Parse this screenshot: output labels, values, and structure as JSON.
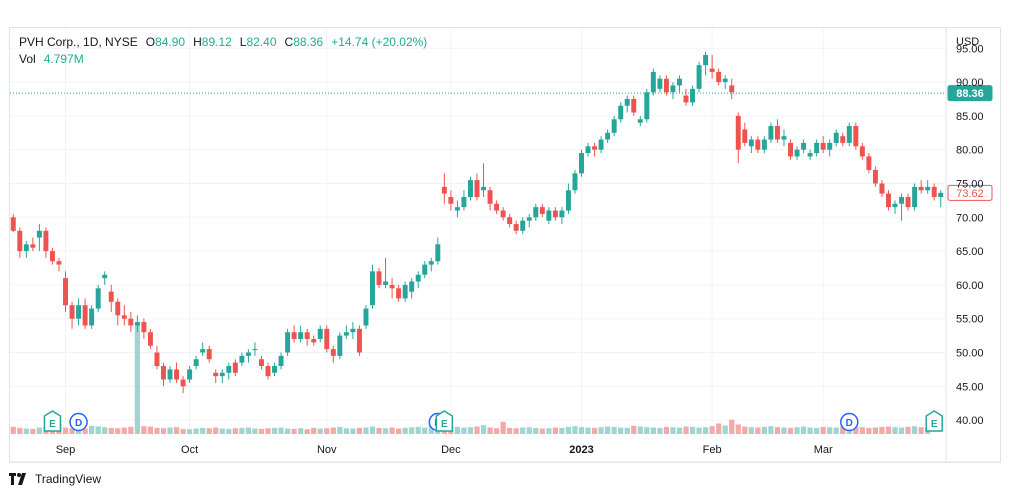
{
  "legend": {
    "symbol_line": "PVH Corp., 1D, NYSE",
    "open_label": "O",
    "open_value": "84.90",
    "high_label": "H",
    "high_value": "89.12",
    "low_label": "L",
    "low_value": "82.40",
    "close_label": "C",
    "close_value": "88.36",
    "change": "+14.74 (+20.02%)",
    "volume_label": "Vol",
    "volume_value": "4.797M"
  },
  "footer": {
    "brand": "TradingView"
  },
  "colors": {
    "up": "#26a69a",
    "down": "#ef5350",
    "up_vol": "#9ed6cf",
    "down_vol": "#f4a8a7",
    "grid": "#f0f3fa",
    "axis_text": "#131722"
  },
  "chart_data": {
    "type": "candlestick",
    "currency": "USD",
    "ylim": [
      37.5,
      98
    ],
    "y_ticks": [
      "95.00",
      "90.00",
      "85.00",
      "80.00",
      "75.00",
      "70.00",
      "65.00",
      "60.00",
      "55.00",
      "50.00",
      "45.00",
      "40.00"
    ],
    "x_labels": [
      {
        "label": "Sep",
        "index": 8
      },
      {
        "label": "Oct",
        "index": 27
      },
      {
        "label": "Nov",
        "index": 48
      },
      {
        "label": "Dec",
        "index": 67
      },
      {
        "label": "2023",
        "index": 87
      },
      {
        "label": "Feb",
        "index": 107
      },
      {
        "label": "Mar",
        "index": 124
      }
    ],
    "price_lines": [
      {
        "value": 88.36,
        "label": "88.36",
        "style": "filled",
        "color": "#26a69a",
        "dotted_line": true
      },
      {
        "value": 73.62,
        "label": "73.62",
        "style": "outline",
        "color": "#ef5350",
        "dotted_line": false
      }
    ],
    "events": [
      {
        "type": "E",
        "index": 6
      },
      {
        "type": "D",
        "index": 10
      },
      {
        "type": "D",
        "index": 65
      },
      {
        "type": "E",
        "index": 66
      },
      {
        "type": "D",
        "index": 128
      },
      {
        "type": "E",
        "index": 141
      }
    ],
    "candles": [
      [
        70,
        70.5,
        67.8,
        68
      ],
      [
        68,
        68.5,
        64,
        65
      ],
      [
        65,
        66.5,
        64,
        66
      ],
      [
        66,
        67,
        65,
        65.5
      ],
      [
        67,
        69,
        65,
        68
      ],
      [
        68,
        68.5,
        64,
        65
      ],
      [
        65,
        65.5,
        63,
        63.5
      ],
      [
        63.5,
        64,
        62,
        63
      ],
      [
        61,
        62,
        56,
        57
      ],
      [
        57,
        57.5,
        53.5,
        55
      ],
      [
        55,
        58,
        54,
        57
      ],
      [
        57,
        58,
        53.5,
        54
      ],
      [
        54,
        57,
        53.5,
        56.5
      ],
      [
        56.5,
        60,
        56,
        59.5
      ],
      [
        61,
        62,
        60,
        61.5
      ],
      [
        59,
        60,
        56,
        57.5
      ],
      [
        57.5,
        58,
        54,
        55.5
      ],
      [
        55.5,
        57,
        54,
        55
      ],
      [
        55,
        56,
        53,
        54
      ],
      [
        54,
        55.5,
        53,
        54.5
      ],
      [
        54.5,
        55,
        52,
        53
      ],
      [
        53,
        53.5,
        50.5,
        51
      ],
      [
        50,
        51,
        47.5,
        48
      ],
      [
        48,
        48.5,
        45,
        46
      ],
      [
        46,
        48,
        45.5,
        47.5
      ],
      [
        47.5,
        48.5,
        45.5,
        46
      ],
      [
        46,
        46.5,
        44,
        45
      ],
      [
        46,
        48,
        45.5,
        47.5
      ],
      [
        48,
        49.5,
        47.5,
        49
      ],
      [
        50,
        51.5,
        49.5,
        50.5
      ],
      [
        50.5,
        51,
        48.5,
        49
      ],
      [
        47,
        47.5,
        45.5,
        46.5
      ],
      [
        46.5,
        47.5,
        45.5,
        47
      ],
      [
        47,
        48.5,
        46,
        48
      ],
      [
        48.5,
        49,
        46.5,
        47
      ],
      [
        48.5,
        50,
        48,
        49.5
      ],
      [
        49.5,
        50.5,
        48.5,
        50
      ],
      [
        50.5,
        51.5,
        49.5,
        50.5
      ],
      [
        49,
        49.5,
        47.5,
        48
      ],
      [
        48,
        48.5,
        46,
        46.5
      ],
      [
        47,
        48.5,
        46.5,
        48
      ],
      [
        48,
        50,
        47.5,
        49.5
      ],
      [
        50,
        53.5,
        49.5,
        53
      ],
      [
        53,
        54,
        51.5,
        52
      ],
      [
        52,
        54,
        51.5,
        53
      ],
      [
        53,
        53.5,
        51,
        52
      ],
      [
        52,
        52.5,
        51,
        51.5
      ],
      [
        52,
        54,
        51.5,
        53.5
      ],
      [
        53.5,
        54,
        50,
        50.5
      ],
      [
        50.5,
        51,
        48.5,
        49.5
      ],
      [
        49.5,
        53,
        49,
        52.5
      ],
      [
        52.5,
        54,
        52,
        53
      ],
      [
        53,
        54.5,
        52,
        53.5
      ],
      [
        53.5,
        54,
        49.5,
        50
      ],
      [
        54,
        57,
        53.5,
        56.5
      ],
      [
        57,
        63,
        56.5,
        62
      ],
      [
        62,
        62.5,
        59.5,
        60
      ],
      [
        60,
        64,
        59.5,
        60.5
      ],
      [
        60,
        61,
        58,
        59.5
      ],
      [
        59.5,
        60,
        57.5,
        58
      ],
      [
        58,
        60.5,
        57.5,
        60
      ],
      [
        59,
        61,
        58,
        60.5
      ],
      [
        60.5,
        62,
        59.5,
        61.5
      ],
      [
        61.5,
        63.5,
        61,
        63
      ],
      [
        63,
        64,
        62,
        63.5
      ],
      [
        63.5,
        67,
        63,
        66
      ],
      [
        74.5,
        76.5,
        72,
        73.5
      ],
      [
        73,
        74,
        71,
        72
      ],
      [
        71,
        72.5,
        70,
        71.5
      ],
      [
        71.5,
        74,
        71,
        73
      ],
      [
        73,
        76,
        72.5,
        75.5
      ],
      [
        75.5,
        76.5,
        72.5,
        73
      ],
      [
        74,
        78,
        73,
        74.5
      ],
      [
        74,
        74.5,
        71,
        72
      ],
      [
        72,
        72.5,
        70.5,
        71
      ],
      [
        71,
        71.5,
        69.5,
        70
      ],
      [
        70,
        70.5,
        68.5,
        69
      ],
      [
        69,
        69.5,
        67.5,
        68
      ],
      [
        68,
        70,
        67.5,
        69.5
      ],
      [
        69.5,
        70.5,
        68.5,
        70
      ],
      [
        70,
        72,
        69.5,
        71.5
      ],
      [
        71.5,
        72,
        70,
        70.5
      ],
      [
        69.5,
        71.5,
        69,
        71
      ],
      [
        71,
        71.5,
        69.5,
        70
      ],
      [
        70,
        71.5,
        69,
        71
      ],
      [
        71,
        75,
        70.5,
        74
      ],
      [
        74,
        77,
        73.5,
        76.5
      ],
      [
        76.5,
        80,
        76,
        79.5
      ],
      [
        79.5,
        81,
        79,
        80.5
      ],
      [
        80.5,
        81,
        79,
        80
      ],
      [
        80,
        82,
        79.5,
        81.5
      ],
      [
        81.5,
        83,
        81,
        82.5
      ],
      [
        82.5,
        85,
        82,
        84.5
      ],
      [
        84.5,
        87,
        84,
        86.5
      ],
      [
        86.5,
        88,
        85.5,
        87.5
      ],
      [
        87.5,
        88,
        85,
        85.5
      ],
      [
        84,
        85,
        83.5,
        84.5
      ],
      [
        84.5,
        89,
        84,
        88.5
      ],
      [
        88.5,
        92,
        88,
        91.5
      ],
      [
        89,
        91,
        88.5,
        90.5
      ],
      [
        90.5,
        91,
        88,
        88.5
      ],
      [
        88.5,
        90,
        87.5,
        89.5
      ],
      [
        89.5,
        91,
        88.5,
        90.5
      ],
      [
        88,
        89,
        86.5,
        87
      ],
      [
        87,
        89.5,
        86.5,
        89
      ],
      [
        89,
        93,
        88.5,
        92.5
      ],
      [
        92.5,
        94.5,
        91,
        94
      ],
      [
        92,
        94,
        90.5,
        91.5
      ],
      [
        91.5,
        92,
        89.5,
        90
      ],
      [
        90,
        91,
        89,
        90.5
      ],
      [
        89.5,
        90.5,
        87.5,
        88.5
      ],
      [
        85,
        85.5,
        78,
        80
      ],
      [
        83,
        84,
        80.5,
        81
      ],
      [
        80.5,
        82,
        79.5,
        81.5
      ],
      [
        81.5,
        82,
        79.5,
        80
      ],
      [
        80,
        82,
        79.5,
        81.5
      ],
      [
        81.5,
        84,
        81,
        83.5
      ],
      [
        83.5,
        84.5,
        81,
        81.5
      ],
      [
        81.5,
        83,
        80.5,
        82
      ],
      [
        81,
        81.5,
        78.5,
        79
      ],
      [
        79,
        80.5,
        78.5,
        80
      ],
      [
        80,
        81.5,
        79.5,
        81
      ],
      [
        79,
        80,
        78.5,
        79.5
      ],
      [
        79.5,
        81.5,
        79,
        81
      ],
      [
        81,
        82,
        79.5,
        80
      ],
      [
        80,
        81.5,
        79,
        81
      ],
      [
        81,
        83,
        80.5,
        82.5
      ],
      [
        82,
        82.5,
        80.5,
        81
      ],
      [
        81,
        84,
        80.5,
        83.5
      ],
      [
        83.5,
        84,
        80,
        80.5
      ],
      [
        80.5,
        81,
        78.5,
        79
      ],
      [
        79,
        79.5,
        76.5,
        77
      ],
      [
        77,
        77.5,
        74.5,
        75
      ],
      [
        75,
        75.5,
        73,
        73.5
      ],
      [
        73.5,
        74,
        71,
        71.5
      ],
      [
        71.5,
        72.5,
        70.5,
        72
      ],
      [
        72,
        73.5,
        69.5,
        73
      ],
      [
        73,
        73.5,
        71,
        71.5
      ],
      [
        71.5,
        75,
        71,
        74.5
      ],
      [
        74.5,
        75.5,
        73.5,
        74
      ],
      [
        74,
        75.5,
        73.5,
        74.5
      ],
      [
        74.5,
        75,
        72.5,
        73
      ],
      [
        73,
        74,
        71.5,
        73.62
      ]
    ],
    "volumes": [
      2.1,
      1.8,
      1.6,
      1.5,
      1.9,
      2.2,
      3.9,
      3.0,
      1.9,
      1.7,
      1.8,
      1.6,
      2.4,
      2.2,
      2.0,
      1.8,
      1.7,
      1.9,
      2.1,
      23.0,
      2.3,
      2.2,
      1.8,
      1.7,
      1.9,
      2.0,
      1.5,
      1.4,
      1.6,
      1.8,
      1.7,
      1.9,
      1.6,
      1.5,
      1.7,
      1.8,
      1.9,
      1.6,
      1.5,
      1.7,
      1.8,
      1.9,
      1.6,
      1.5,
      1.7,
      1.4,
      1.8,
      1.6,
      1.7,
      1.9,
      2.1,
      1.7,
      1.6,
      1.8,
      1.9,
      2.2,
      1.8,
      1.7,
      1.9,
      1.6,
      1.8,
      2.0,
      2.1,
      1.9,
      3.0,
      3.4,
      2.8,
      2.4,
      2.1,
      1.9,
      2.0,
      2.2,
      2.6,
      1.9,
      1.7,
      3.6,
      1.8,
      1.7,
      1.9,
      2.0,
      1.8,
      1.6,
      1.7,
      1.9,
      1.8,
      2.1,
      2.3,
      2.0,
      1.9,
      1.8,
      2.0,
      2.2,
      2.1,
      1.9,
      1.8,
      2.4,
      2.2,
      2.0,
      1.9,
      1.8,
      2.1,
      2.0,
      1.9,
      2.2,
      2.1,
      1.9,
      2.0,
      2.3,
      3.1,
      2.5,
      4.2,
      2.8,
      2.2,
      2.0,
      1.9,
      2.1,
      2.3,
      2.0,
      1.9,
      1.8,
      2.0,
      2.2,
      1.9,
      1.8,
      2.1,
      2.0,
      1.9,
      2.2,
      2.4,
      2.1,
      2.0,
      1.8,
      1.9,
      2.1,
      2.2,
      2.0,
      1.9,
      2.1,
      2.3,
      2.0,
      1.8
    ]
  }
}
